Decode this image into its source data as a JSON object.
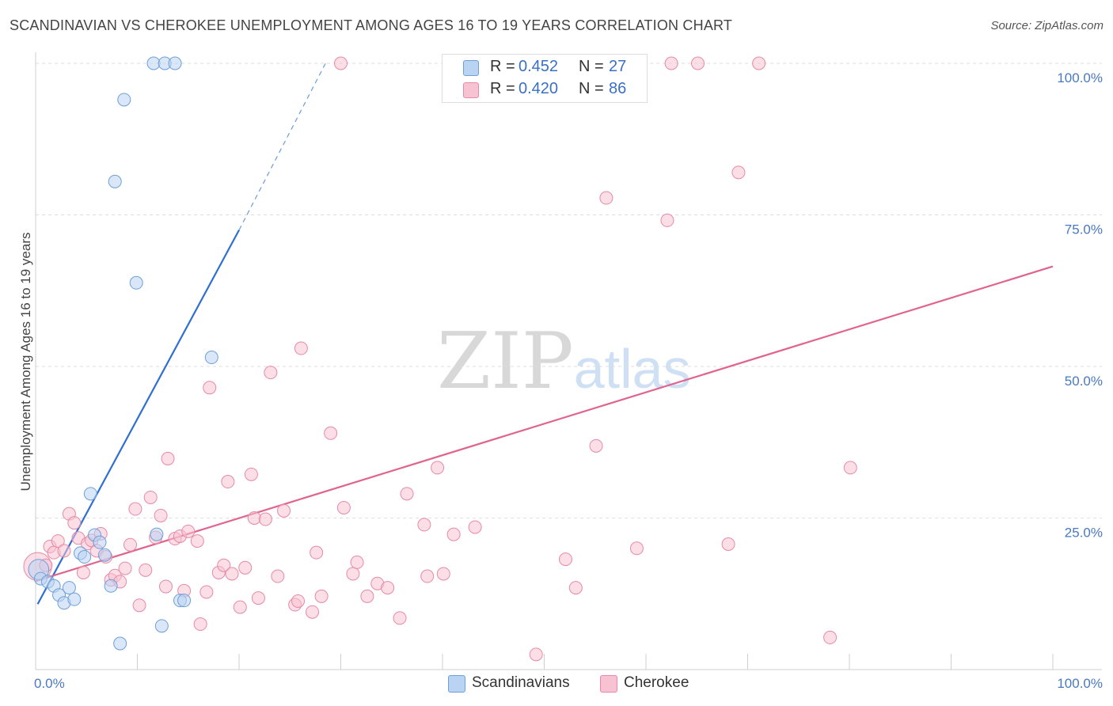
{
  "title": "SCANDINAVIAN VS CHEROKEE UNEMPLOYMENT AMONG AGES 16 TO 19 YEARS CORRELATION CHART",
  "source": "Source: ZipAtlas.com",
  "watermark": {
    "zip": "ZIP",
    "atlas": "atlas"
  },
  "legend": {
    "scandinavians": {
      "r_label": "R =",
      "r_value": "0.452",
      "n_label": "N =",
      "n_value": "27"
    },
    "cherokee": {
      "r_label": "R =",
      "r_value": "0.420",
      "n_label": "N =",
      "n_value": "86"
    }
  },
  "bottom_legend": {
    "scandinavians": "Scandinavians",
    "cherokee": "Cherokee"
  },
  "colors": {
    "scandinavians_fill": "#b9d3f3",
    "scandinavians_stroke": "#6f9fd8",
    "scandinavians_line": "#2f6fd0",
    "cherokee_fill": "#f7c2d2",
    "cherokee_stroke": "#e68aa8",
    "cherokee_line": "#e0648e",
    "tick_text": "#4a78c2"
  },
  "chart_data": {
    "type": "scatter",
    "title": "SCANDINAVIAN VS CHEROKEE UNEMPLOYMENT AMONG AGES 16 TO 19 YEARS CORRELATION CHART",
    "xlabel": "",
    "ylabel": "Unemployment Among Ages 16 to 19 years",
    "xlim": [
      0,
      100
    ],
    "ylim": [
      0,
      100
    ],
    "x_tick_labels": [
      "0.0%",
      "100.0%"
    ],
    "y_tick_labels": [
      "25.0%",
      "50.0%",
      "75.0%",
      "100.0%"
    ],
    "y_ticks": [
      25,
      50,
      75,
      100
    ],
    "grid": true,
    "legend_position": "top-center",
    "series": [
      {
        "name": "Scandinavians",
        "points": [
          [
            0.3,
            16.5,
            1.6
          ],
          [
            0.5,
            15.0,
            1
          ],
          [
            1.2,
            14.5,
            1
          ],
          [
            1.8,
            13.8,
            1
          ],
          [
            2.3,
            12.3,
            1
          ],
          [
            2.8,
            11.0,
            1
          ],
          [
            3.3,
            13.5,
            1
          ],
          [
            3.8,
            11.6,
            1
          ],
          [
            4.4,
            19.2,
            1
          ],
          [
            4.8,
            18.6,
            1
          ],
          [
            5.4,
            29.0,
            1
          ],
          [
            5.8,
            22.2,
            1
          ],
          [
            6.3,
            21.0,
            1
          ],
          [
            6.8,
            18.9,
            1
          ],
          [
            7.4,
            13.8,
            1
          ],
          [
            7.8,
            80.5,
            1
          ],
          [
            8.3,
            4.3,
            1
          ],
          [
            8.7,
            94.0,
            1
          ],
          [
            9.9,
            63.8,
            1
          ],
          [
            11.6,
            100.0,
            1
          ],
          [
            11.9,
            22.3,
            1
          ],
          [
            12.4,
            7.2,
            1
          ],
          [
            12.7,
            100.0,
            1
          ],
          [
            13.7,
            100.0,
            1
          ],
          [
            14.2,
            11.4,
            1
          ],
          [
            14.6,
            11.4,
            1
          ],
          [
            17.3,
            51.5,
            1
          ]
        ],
        "trendline": {
          "x": [
            0.2,
            20.0
          ],
          "y": [
            10.8,
            72.5
          ],
          "dashed_extension_to": [
            28.5,
            100.0
          ]
        }
      },
      {
        "name": "Cherokee",
        "points": [
          [
            0.2,
            17.0,
            2.2
          ],
          [
            1.0,
            17.2,
            1
          ],
          [
            1.4,
            20.3,
            1
          ],
          [
            1.8,
            19.3,
            1
          ],
          [
            2.2,
            21.2,
            1
          ],
          [
            2.8,
            19.6,
            1
          ],
          [
            3.3,
            25.7,
            1
          ],
          [
            3.8,
            24.2,
            1
          ],
          [
            4.2,
            21.7,
            1
          ],
          [
            4.7,
            16.0,
            1
          ],
          [
            5.1,
            20.8,
            1
          ],
          [
            5.5,
            21.3,
            1
          ],
          [
            6.0,
            19.6,
            1
          ],
          [
            6.4,
            22.4,
            1
          ],
          [
            6.9,
            18.6,
            1
          ],
          [
            7.4,
            14.8,
            1
          ],
          [
            7.8,
            15.5,
            1
          ],
          [
            8.3,
            14.5,
            1
          ],
          [
            8.8,
            16.7,
            1
          ],
          [
            9.3,
            20.6,
            1
          ],
          [
            9.8,
            26.5,
            1
          ],
          [
            10.2,
            10.6,
            1
          ],
          [
            10.8,
            16.4,
            1
          ],
          [
            11.3,
            28.4,
            1
          ],
          [
            11.8,
            21.8,
            1
          ],
          [
            12.3,
            25.4,
            1
          ],
          [
            12.8,
            13.7,
            1
          ],
          [
            13.0,
            34.8,
            1
          ],
          [
            13.7,
            21.6,
            1
          ],
          [
            14.2,
            22.0,
            1
          ],
          [
            14.6,
            13.0,
            1
          ],
          [
            15.0,
            22.8,
            1
          ],
          [
            15.9,
            21.2,
            1
          ],
          [
            16.2,
            7.5,
            1
          ],
          [
            16.8,
            12.8,
            1
          ],
          [
            17.1,
            46.5,
            1
          ],
          [
            18.0,
            16.0,
            1
          ],
          [
            18.5,
            17.2,
            1
          ],
          [
            18.9,
            31.0,
            1
          ],
          [
            19.3,
            15.8,
            1
          ],
          [
            20.1,
            10.3,
            1
          ],
          [
            20.6,
            16.8,
            1
          ],
          [
            21.2,
            32.2,
            1
          ],
          [
            21.5,
            25.0,
            1
          ],
          [
            21.9,
            11.8,
            1
          ],
          [
            22.6,
            24.8,
            1
          ],
          [
            23.1,
            49.0,
            1
          ],
          [
            23.8,
            15.4,
            1
          ],
          [
            24.4,
            26.2,
            1
          ],
          [
            25.5,
            10.7,
            1
          ],
          [
            25.8,
            11.3,
            1
          ],
          [
            26.1,
            53.0,
            1
          ],
          [
            27.2,
            9.5,
            1
          ],
          [
            27.6,
            19.3,
            1
          ],
          [
            28.1,
            12.1,
            1
          ],
          [
            29.0,
            39.0,
            1
          ],
          [
            30.0,
            100.0,
            1
          ],
          [
            30.3,
            26.7,
            1
          ],
          [
            31.2,
            15.8,
            1
          ],
          [
            31.6,
            17.7,
            1
          ],
          [
            32.6,
            12.1,
            1
          ],
          [
            33.6,
            14.2,
            1
          ],
          [
            34.6,
            13.5,
            1
          ],
          [
            35.8,
            8.5,
            1
          ],
          [
            36.5,
            29.0,
            1
          ],
          [
            38.2,
            23.9,
            1
          ],
          [
            38.5,
            15.4,
            1
          ],
          [
            39.5,
            33.3,
            1
          ],
          [
            40.1,
            15.8,
            1
          ],
          [
            41.1,
            22.3,
            1
          ],
          [
            42.6,
            100.0,
            1
          ],
          [
            43.2,
            23.5,
            1
          ],
          [
            49.2,
            2.5,
            1
          ],
          [
            52.1,
            18.2,
            1
          ],
          [
            53.1,
            13.5,
            1
          ],
          [
            55.1,
            36.9,
            1
          ],
          [
            56.1,
            77.8,
            1
          ],
          [
            59.1,
            20.0,
            1
          ],
          [
            62.1,
            74.1,
            1
          ],
          [
            62.5,
            100.0,
            1
          ],
          [
            65.1,
            100.0,
            1
          ],
          [
            68.1,
            20.7,
            1
          ],
          [
            69.1,
            82.0,
            1
          ],
          [
            71.1,
            100.0,
            1
          ],
          [
            78.1,
            5.3,
            1
          ],
          [
            80.1,
            33.3,
            1
          ]
        ],
        "trendline": {
          "x": [
            0.0,
            100.0
          ],
          "y": [
            14.6,
            66.5
          ]
        }
      }
    ]
  }
}
